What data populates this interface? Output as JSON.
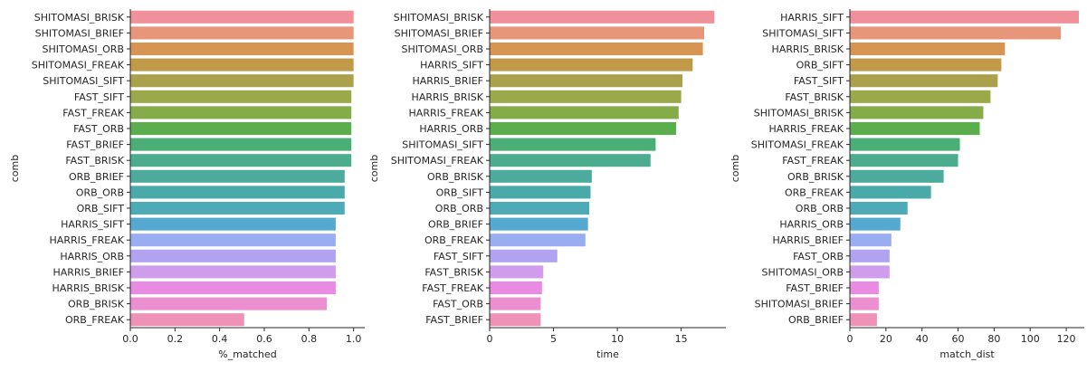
{
  "chart_data": [
    {
      "type": "bar",
      "orientation": "horizontal",
      "xlabel": "%_matched",
      "ylabel": "comb",
      "xlim": [
        0,
        1.05
      ],
      "xticks": [
        "0.0",
        "0.2",
        "0.4",
        "0.6",
        "0.8",
        "1.0"
      ],
      "xtick_values": [
        0,
        0.2,
        0.4,
        0.6,
        0.8,
        1.0
      ],
      "categories": [
        "SHITOMASI_BRISK",
        "SHITOMASI_BRIEF",
        "SHITOMASI_ORB",
        "SHITOMASI_FREAK",
        "SHITOMASI_SIFT",
        "FAST_SIFT",
        "FAST_FREAK",
        "FAST_ORB",
        "FAST_BRIEF",
        "FAST_BRISK",
        "ORB_BRIEF",
        "ORB_ORB",
        "ORB_SIFT",
        "HARRIS_SIFT",
        "HARRIS_FREAK",
        "HARRIS_ORB",
        "HARRIS_BRIEF",
        "HARRIS_BRISK",
        "ORB_BRISK",
        "ORB_FREAK"
      ],
      "values": [
        1.0,
        1.0,
        1.0,
        1.0,
        1.0,
        0.99,
        0.99,
        0.99,
        0.99,
        0.99,
        0.96,
        0.96,
        0.96,
        0.92,
        0.92,
        0.92,
        0.92,
        0.92,
        0.88,
        0.51
      ],
      "grid": false,
      "legend": "none"
    },
    {
      "type": "bar",
      "orientation": "horizontal",
      "xlabel": "time",
      "ylabel": "comb",
      "xlim": [
        0,
        18.5
      ],
      "xticks": [
        "0",
        "5",
        "10",
        "15"
      ],
      "xtick_values": [
        0,
        5,
        10,
        15
      ],
      "categories": [
        "SHITOMASI_BRISK",
        "SHITOMASI_BRIEF",
        "SHITOMASI_ORB",
        "HARRIS_SIFT",
        "HARRIS_BRIEF",
        "HARRIS_BRISK",
        "HARRIS_FREAK",
        "HARRIS_ORB",
        "SHITOMASI_SIFT",
        "SHITOMASI_FREAK",
        "ORB_BRISK",
        "ORB_SIFT",
        "ORB_ORB",
        "ORB_BRIEF",
        "ORB_FREAK",
        "FAST_SIFT",
        "FAST_BRISK",
        "FAST_FREAK",
        "FAST_ORB",
        "FAST_BRIEF"
      ],
      "values": [
        17.6,
        16.8,
        16.7,
        15.9,
        15.1,
        15.0,
        14.8,
        14.6,
        13.0,
        12.6,
        8.0,
        7.9,
        7.8,
        7.7,
        7.5,
        5.3,
        4.2,
        4.1,
        4.0,
        4.0
      ],
      "grid": false,
      "legend": "none"
    },
    {
      "type": "bar",
      "orientation": "horizontal",
      "xlabel": "match_dist",
      "ylabel": "comb",
      "xlim": [
        0,
        130
      ],
      "xticks": [
        "0",
        "20",
        "40",
        "60",
        "80",
        "100",
        "120"
      ],
      "xtick_values": [
        0,
        20,
        40,
        60,
        80,
        100,
        120
      ],
      "categories": [
        "HARRIS_SIFT",
        "SHITOMASI_SIFT",
        "HARRIS_BRISK",
        "ORB_SIFT",
        "FAST_SIFT",
        "FAST_BRISK",
        "SHITOMASI_BRISK",
        "HARRIS_FREAK",
        "SHITOMASI_FREAK",
        "FAST_FREAK",
        "ORB_BRISK",
        "ORB_FREAK",
        "ORB_ORB",
        "HARRIS_ORB",
        "HARRIS_BRIEF",
        "FAST_ORB",
        "SHITOMASI_ORB",
        "FAST_BRIEF",
        "SHITOMASI_BRIEF",
        "ORB_BRIEF"
      ],
      "values": [
        127,
        117,
        86,
        84,
        82,
        78,
        74,
        72,
        61,
        60,
        52,
        45,
        32,
        28,
        23,
        22,
        22,
        16,
        16,
        15
      ],
      "grid": false,
      "legend": "none"
    }
  ],
  "colors": [
    "#f0909a",
    "#e8967a",
    "#d89453",
    "#c09a46",
    "#aba04b",
    "#9ca94a",
    "#84ad4a",
    "#5aae4c",
    "#4cae77",
    "#4cad8e",
    "#4cab9d",
    "#4aaaa9",
    "#4daab7",
    "#55a9d1",
    "#99aef0",
    "#b2a3f0",
    "#d09cec",
    "#e98be3",
    "#ec8fd0",
    "#ee92b8"
  ]
}
